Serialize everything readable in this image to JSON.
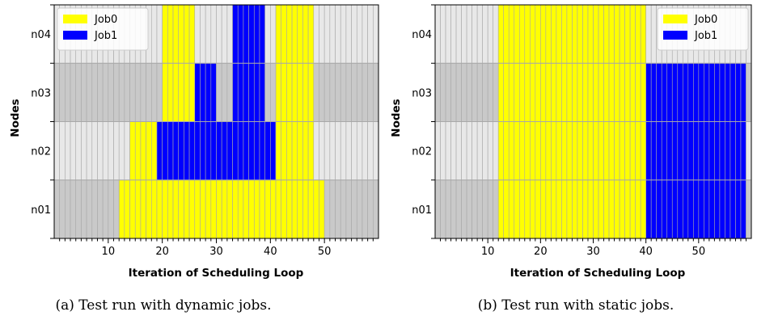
{
  "chart_data": [
    {
      "type": "heatmap",
      "caption": "(a) Test run with dynamic jobs.",
      "xlabel": "Iteration of Scheduling Loop",
      "ylabel": "Nodes",
      "xlim": [
        0,
        60
      ],
      "x_ticks": [
        10,
        20,
        30,
        40,
        50
      ],
      "nodes": [
        "n01",
        "n02",
        "n03",
        "n04"
      ],
      "legend": {
        "position": "top-left",
        "entries": [
          "Job0",
          "Job1"
        ]
      },
      "colors": {
        "Job0": "#ffff00",
        "Job1": "#0000ff",
        "idle_light": "#e8e8e8",
        "idle_dark": "#c9c9c9",
        "cell_border": "#a8a8a8"
      },
      "allocations": [
        {
          "job": "Job0",
          "node": "n01",
          "start": 12,
          "end": 49
        },
        {
          "job": "Job0",
          "node": "n02",
          "start": 14,
          "end": 18
        },
        {
          "job": "Job0",
          "node": "n02",
          "start": 41,
          "end": 47
        },
        {
          "job": "Job0",
          "node": "n03",
          "start": 20,
          "end": 25
        },
        {
          "job": "Job0",
          "node": "n03",
          "start": 41,
          "end": 47
        },
        {
          "job": "Job0",
          "node": "n04",
          "start": 20,
          "end": 25
        },
        {
          "job": "Job0",
          "node": "n04",
          "start": 41,
          "end": 47
        },
        {
          "job": "Job1",
          "node": "n02",
          "start": 19,
          "end": 40
        },
        {
          "job": "Job1",
          "node": "n03",
          "start": 26,
          "end": 29
        },
        {
          "job": "Job1",
          "node": "n03",
          "start": 33,
          "end": 38
        },
        {
          "job": "Job1",
          "node": "n04",
          "start": 33,
          "end": 38
        }
      ]
    },
    {
      "type": "heatmap",
      "caption": "(b) Test run with static jobs.",
      "xlabel": "Iteration of Scheduling Loop",
      "ylabel": "Nodes",
      "xlim": [
        0,
        60
      ],
      "x_ticks": [
        10,
        20,
        30,
        40,
        50
      ],
      "nodes": [
        "n01",
        "n02",
        "n03",
        "n04"
      ],
      "legend": {
        "position": "top-right",
        "entries": [
          "Job0",
          "Job1"
        ]
      },
      "colors": {
        "Job0": "#ffff00",
        "Job1": "#0000ff",
        "idle_light": "#e8e8e8",
        "idle_dark": "#c9c9c9",
        "cell_border": "#a8a8a8"
      },
      "allocations": [
        {
          "job": "Job0",
          "node": "n01",
          "start": 12,
          "end": 39
        },
        {
          "job": "Job0",
          "node": "n02",
          "start": 12,
          "end": 39
        },
        {
          "job": "Job0",
          "node": "n03",
          "start": 12,
          "end": 39
        },
        {
          "job": "Job0",
          "node": "n04",
          "start": 12,
          "end": 39
        },
        {
          "job": "Job1",
          "node": "n01",
          "start": 40,
          "end": 58
        },
        {
          "job": "Job1",
          "node": "n02",
          "start": 40,
          "end": 58
        },
        {
          "job": "Job1",
          "node": "n03",
          "start": 40,
          "end": 58
        }
      ]
    }
  ]
}
